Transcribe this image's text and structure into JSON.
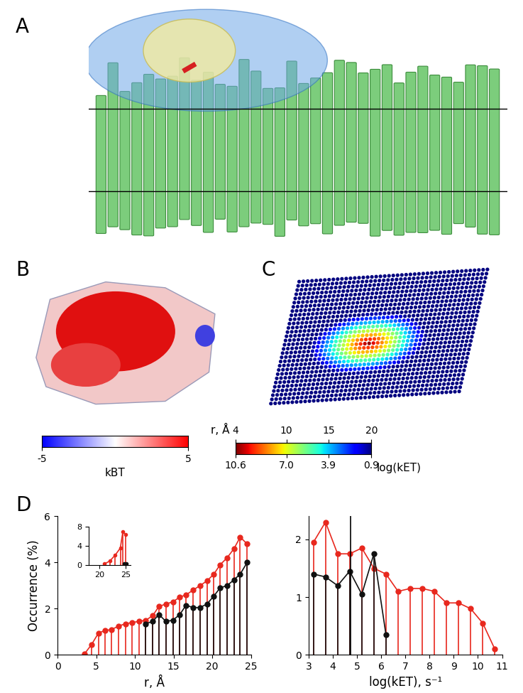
{
  "panel_labels": [
    "A",
    "B",
    "C",
    "D"
  ],
  "colorbar_B": {
    "range": [
      -5,
      5
    ],
    "ticks": [
      -5,
      5
    ],
    "label": "kBT"
  },
  "colorbar_C": {
    "range": [
      4,
      20
    ],
    "ticks": [
      4,
      10,
      15,
      20
    ],
    "label_top": "r, Å",
    "secondary_ticks": [
      {
        "value": 4,
        "label": "10.6"
      },
      {
        "value": 10,
        "label": "7.0"
      },
      {
        "value": 15,
        "label": "3.9"
      },
      {
        "value": 20,
        "label": "0.9"
      }
    ],
    "label_bottom": "log(kET)"
  },
  "chart_data": [
    {
      "type": "stem",
      "x_label": "r, Å",
      "y_label": "Occurrence (%)",
      "xlim": [
        0,
        25
      ],
      "xticks": [
        0,
        5,
        10,
        15,
        20,
        25
      ],
      "ylim": [
        0,
        6
      ],
      "yticks": [
        0,
        2,
        4,
        6
      ],
      "series": [
        {
          "color": "#e8281e",
          "marker": "o",
          "x": [
            3.5,
            4.4,
            5.3,
            6.1,
            7.0,
            7.9,
            8.8,
            9.6,
            10.5,
            11.4,
            12.3,
            13.1,
            14.0,
            14.9,
            15.8,
            16.6,
            17.5,
            18.4,
            19.3,
            20.2,
            21.0,
            21.9,
            22.8,
            23.6,
            24.5
          ],
          "values": [
            0.05,
            0.45,
            0.95,
            1.05,
            1.1,
            1.25,
            1.35,
            1.4,
            1.45,
            1.5,
            1.7,
            2.1,
            2.2,
            2.3,
            2.5,
            2.6,
            2.8,
            3.0,
            3.2,
            3.5,
            3.9,
            4.2,
            4.6,
            5.1,
            4.8
          ]
        },
        {
          "color": "#111111",
          "marker": "o",
          "x": [
            11.4,
            12.3,
            13.1,
            14.0,
            14.9,
            15.8,
            16.6,
            17.5,
            18.4,
            19.3,
            20.2,
            21.0,
            21.9,
            22.8,
            23.6,
            24.5
          ],
          "values": [
            1.35,
            1.45,
            1.75,
            1.45,
            1.5,
            1.75,
            2.15,
            2.05,
            2.05,
            2.2,
            2.55,
            2.9,
            3.0,
            3.25,
            3.5,
            4.0
          ]
        }
      ]
    },
    {
      "type": "stem",
      "xlim": [
        18,
        26
      ],
      "xticks": [
        20,
        25
      ],
      "ylim": [
        0,
        8
      ],
      "yticks": [
        0,
        4,
        8
      ],
      "series": [
        {
          "color": "#e8281e",
          "marker": "o",
          "x": [
            21.0,
            22.0,
            23.0,
            24.0,
            24.5,
            25.0
          ],
          "values": [
            0.2,
            0.8,
            2.0,
            3.5,
            7.0,
            6.3
          ]
        },
        {
          "color": "#111111",
          "marker": "o",
          "x": [
            24.7,
            25.2
          ],
          "values": [
            0.3,
            0.2
          ]
        }
      ]
    },
    {
      "type": "stem",
      "x_label": "log(kET), s⁻¹",
      "xlim": [
        3,
        11
      ],
      "xticks": [
        3,
        4,
        5,
        6,
        7,
        8,
        9,
        10,
        11
      ],
      "ylim": [
        0,
        2.4
      ],
      "yticks": [
        0,
        1,
        2
      ],
      "reference_line_x": 4.75,
      "series": [
        {
          "color": "#e8281e",
          "marker": "o",
          "x": [
            3.2,
            3.7,
            4.2,
            4.7,
            5.2,
            5.7,
            6.2,
            6.7,
            7.2,
            7.7,
            8.2,
            8.7,
            9.2,
            9.7,
            10.2,
            10.7
          ],
          "values": [
            1.95,
            2.3,
            1.75,
            1.75,
            1.85,
            1.5,
            1.4,
            1.1,
            1.15,
            1.15,
            1.1,
            0.9,
            0.9,
            0.8,
            0.55,
            0.1
          ]
        },
        {
          "color": "#111111",
          "marker": "o",
          "x": [
            3.2,
            3.7,
            4.2,
            4.7,
            5.2,
            5.7,
            6.2
          ],
          "values": [
            1.4,
            1.35,
            1.2,
            1.45,
            1.05,
            1.75,
            0.35
          ]
        }
      ]
    }
  ]
}
